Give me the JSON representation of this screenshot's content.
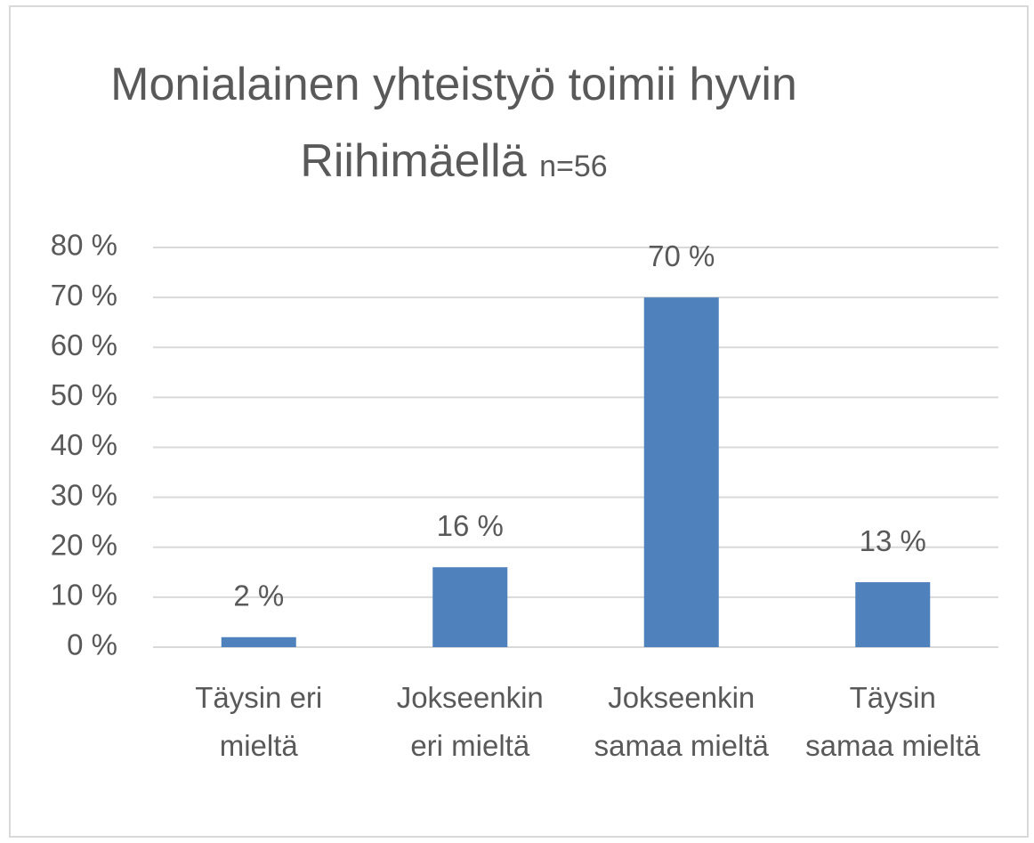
{
  "chart_data": {
    "type": "bar",
    "title": "Monialainen yhteistyö toimii hyvin Riihimäellä",
    "subtitle": "n=56",
    "categories": [
      "Täysin eri mieltä",
      "Jokseenkin eri mieltä",
      "Jokseenkin samaa mieltä",
      "Täysin samaa mieltä"
    ],
    "values": [
      2,
      16,
      70,
      13
    ],
    "value_labels": [
      "2 %",
      "16 %",
      "70 %",
      "13 %"
    ],
    "color": "#4f81bd",
    "ylim": [
      0,
      80
    ],
    "yticks": [
      {
        "value": 0,
        "label": "0 %"
      },
      {
        "value": 10,
        "label": "10 %"
      },
      {
        "value": 20,
        "label": "20 %"
      },
      {
        "value": 30,
        "label": "30 %"
      },
      {
        "value": 40,
        "label": "40 %"
      },
      {
        "value": 50,
        "label": "50 %"
      },
      {
        "value": 60,
        "label": "60 %"
      },
      {
        "value": 70,
        "label": "70 %"
      },
      {
        "value": 80,
        "label": "80 %"
      }
    ],
    "grid": true
  }
}
